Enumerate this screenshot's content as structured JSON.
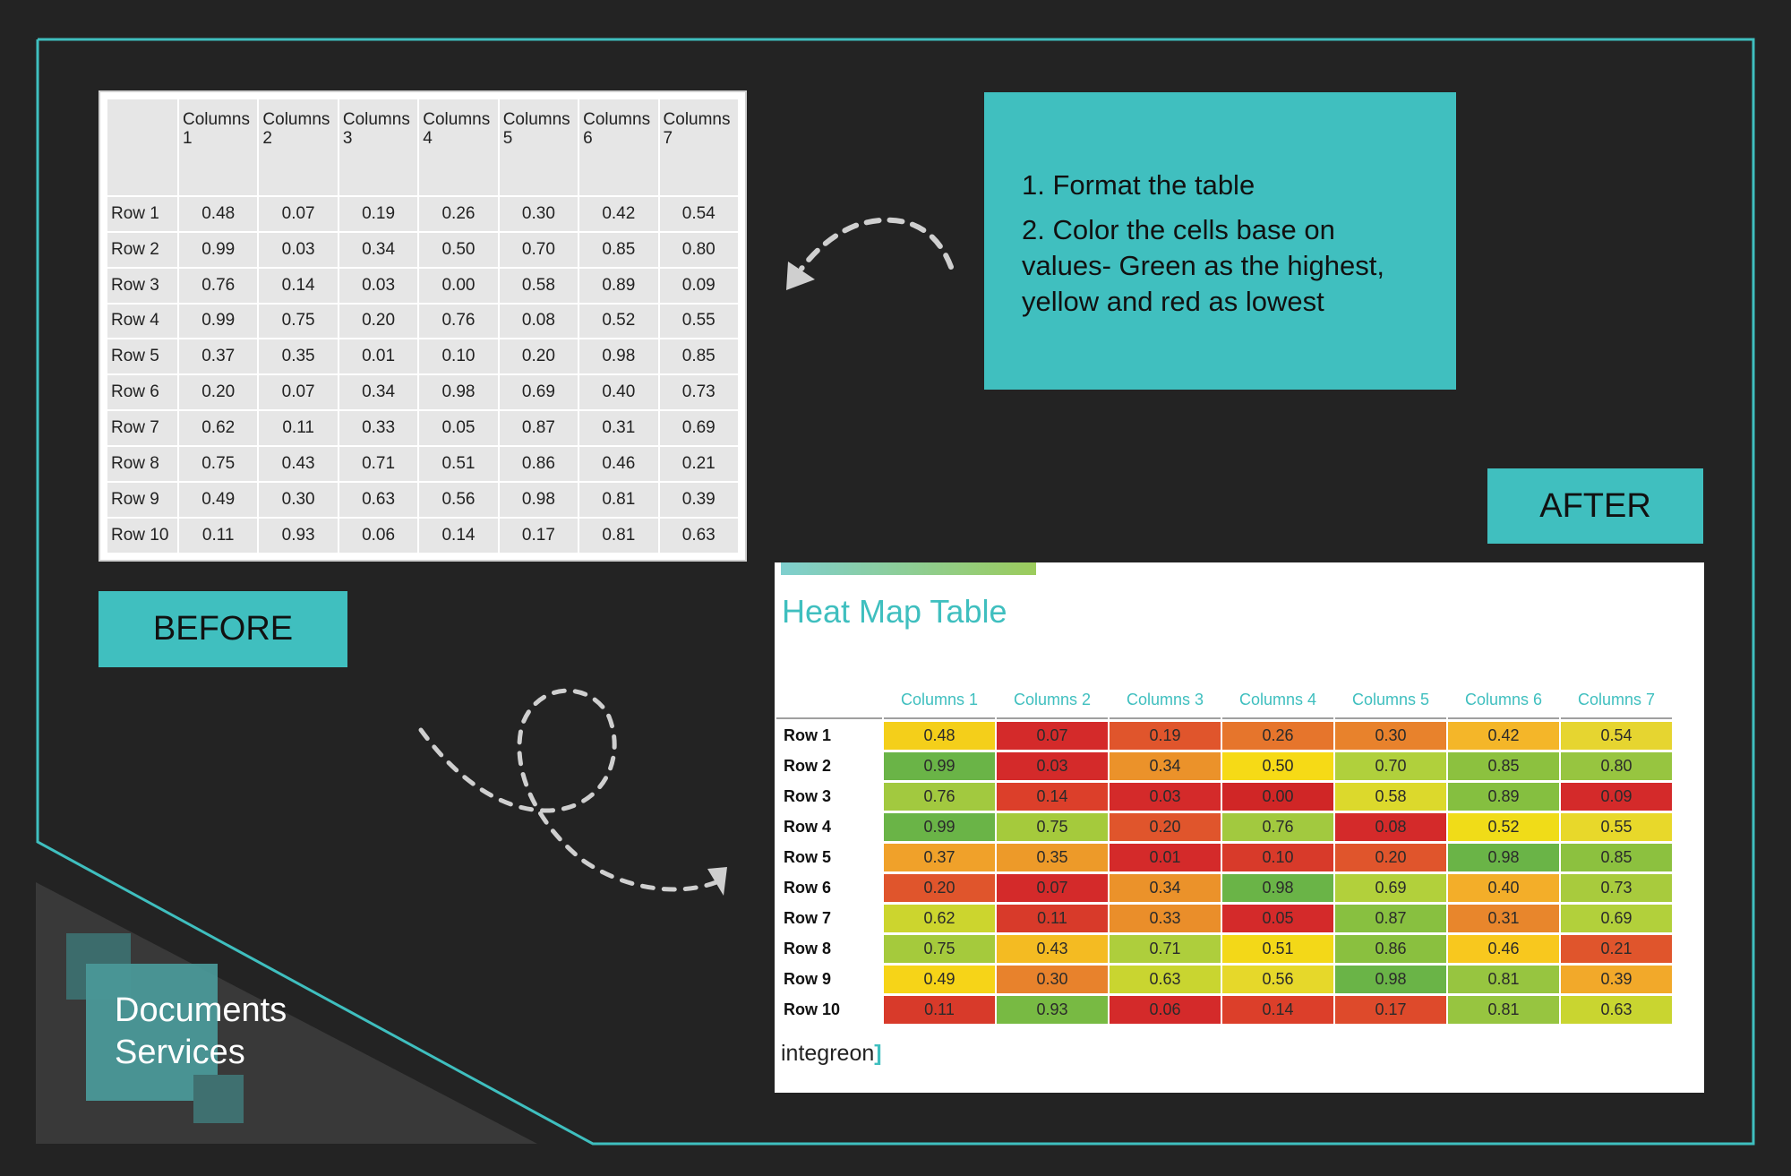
{
  "before": {
    "label": "BEFORE",
    "columns": [
      "Columns 1",
      "Columns 2",
      "Columns 3",
      "Columns 4",
      "Columns 5",
      "Columns 6",
      "Columns 7"
    ],
    "rows": [
      {
        "label": "Row 1",
        "values": [
          "0.48",
          "0.07",
          "0.19",
          "0.26",
          "0.30",
          "0.42",
          "0.54"
        ]
      },
      {
        "label": "Row 2",
        "values": [
          "0.99",
          "0.03",
          "0.34",
          "0.50",
          "0.70",
          "0.85",
          "0.80"
        ]
      },
      {
        "label": "Row 3",
        "values": [
          "0.76",
          "0.14",
          "0.03",
          "0.00",
          "0.58",
          "0.89",
          "0.09"
        ]
      },
      {
        "label": "Row 4",
        "values": [
          "0.99",
          "0.75",
          "0.20",
          "0.76",
          "0.08",
          "0.52",
          "0.55"
        ]
      },
      {
        "label": "Row 5",
        "values": [
          "0.37",
          "0.35",
          "0.01",
          "0.10",
          "0.20",
          "0.98",
          "0.85"
        ]
      },
      {
        "label": "Row 6",
        "values": [
          "0.20",
          "0.07",
          "0.34",
          "0.98",
          "0.69",
          "0.40",
          "0.73"
        ]
      },
      {
        "label": "Row 7",
        "values": [
          "0.62",
          "0.11",
          "0.33",
          "0.05",
          "0.87",
          "0.31",
          "0.69"
        ]
      },
      {
        "label": "Row 8",
        "values": [
          "0.75",
          "0.43",
          "0.71",
          "0.51",
          "0.86",
          "0.46",
          "0.21"
        ]
      },
      {
        "label": "Row 9",
        "values": [
          "0.49",
          "0.30",
          "0.63",
          "0.56",
          "0.98",
          "0.81",
          "0.39"
        ]
      },
      {
        "label": "Row 10",
        "values": [
          "0.11",
          "0.93",
          "0.06",
          "0.14",
          "0.17",
          "0.81",
          "0.63"
        ]
      }
    ]
  },
  "instructions": {
    "step1": "1. Format the table",
    "step2": "2. Color the cells base on values- Green as the highest, yellow and red as lowest"
  },
  "after": {
    "label": "AFTER",
    "title": "Heat Map Table",
    "brand_text": "integreon",
    "rows": [
      {
        "label": "Row 1",
        "values": [
          "0.48",
          "0.07",
          "0.19",
          "0.26",
          "0.30",
          "0.42",
          "0.54"
        ],
        "colors": [
          "#f4cf1a",
          "#d42a2a",
          "#e0552c",
          "#e6752c",
          "#e8822c",
          "#f4b629",
          "#e6d530"
        ]
      },
      {
        "label": "Row 2",
        "values": [
          "0.99",
          "0.03",
          "0.34",
          "0.50",
          "0.70",
          "0.85",
          "0.80"
        ],
        "colors": [
          "#6ab447",
          "#d42a2a",
          "#eb922a",
          "#f6da16",
          "#b0d03c",
          "#8cc13f",
          "#97c540"
        ]
      },
      {
        "label": "Row 3",
        "values": [
          "0.76",
          "0.14",
          "0.03",
          "0.00",
          "0.58",
          "0.89",
          "0.09"
        ],
        "colors": [
          "#a2c93f",
          "#dc3f2a",
          "#d42a2a",
          "#d02626",
          "#dcd92c",
          "#85bf40",
          "#d42a2a"
        ]
      },
      {
        "label": "Row 4",
        "values": [
          "0.99",
          "0.75",
          "0.20",
          "0.76",
          "0.08",
          "0.52",
          "0.55"
        ],
        "colors": [
          "#6ab447",
          "#a5ca3c",
          "#e0552c",
          "#a2c93f",
          "#d42a2a",
          "#f0dc18",
          "#e8d82a"
        ]
      },
      {
        "label": "Row 5",
        "values": [
          "0.37",
          "0.35",
          "0.01",
          "0.10",
          "0.20",
          "0.98",
          "0.85"
        ],
        "colors": [
          "#f0a12a",
          "#ed9a29",
          "#d42a2a",
          "#d83a2a",
          "#e0552c",
          "#6ab447",
          "#8cc13f"
        ]
      },
      {
        "label": "Row 6",
        "values": [
          "0.20",
          "0.07",
          "0.34",
          "0.98",
          "0.69",
          "0.40",
          "0.73"
        ],
        "colors": [
          "#e0552c",
          "#d42a2a",
          "#eb922a",
          "#6ab447",
          "#b2d03b",
          "#f3ae29",
          "#a8cb3d"
        ]
      },
      {
        "label": "Row 7",
        "values": [
          "0.62",
          "0.11",
          "0.33",
          "0.05",
          "0.87",
          "0.31",
          "0.69"
        ],
        "colors": [
          "#ccd52e",
          "#d83a2a",
          "#ea8e2a",
          "#d42a2a",
          "#88c040",
          "#e8862c",
          "#b2d03b"
        ]
      },
      {
        "label": "Row 8",
        "values": [
          "0.75",
          "0.43",
          "0.71",
          "0.51",
          "0.86",
          "0.46",
          "0.21"
        ],
        "colors": [
          "#a5ca3c",
          "#f4bb22",
          "#aece3c",
          "#f3d818",
          "#8ac03f",
          "#f8c81e",
          "#e0552c"
        ]
      },
      {
        "label": "Row 9",
        "values": [
          "0.49",
          "0.30",
          "0.63",
          "0.56",
          "0.98",
          "0.81",
          "0.39"
        ],
        "colors": [
          "#f6d418",
          "#e8822c",
          "#c9d530",
          "#e6d82a",
          "#6ab447",
          "#97c540",
          "#f2a92a"
        ]
      },
      {
        "label": "Row 10",
        "values": [
          "0.11",
          "0.93",
          "0.06",
          "0.14",
          "0.17",
          "0.81",
          "0.63"
        ],
        "colors": [
          "#d83a2a",
          "#78ba43",
          "#d42a2a",
          "#dc3f2a",
          "#de4a2b",
          "#97c540",
          "#c9d530"
        ]
      }
    ]
  },
  "logo": {
    "line1": "Documents",
    "line2": "Services"
  },
  "colors": {
    "background": "#232323",
    "accent": "#40bfbf",
    "title_teal": "#3fbfbf"
  }
}
